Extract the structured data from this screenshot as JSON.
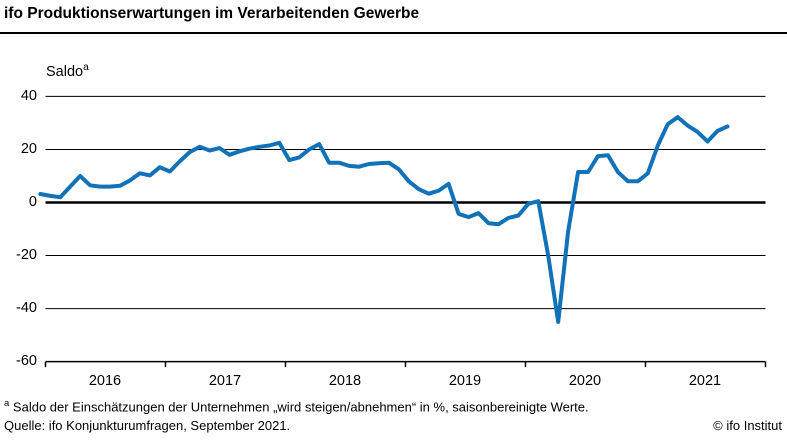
{
  "header": {
    "title": "ifo Produktionserwartungen im Verarbeitenden Gewerbe"
  },
  "chart_data": {
    "type": "line",
    "y_axis_label": "Saldo",
    "y_axis_label_superscript": "a",
    "y_tick_labels": [
      "40",
      "20",
      "0",
      "-20",
      "-40",
      "-60"
    ],
    "y_tick_values": [
      40,
      20,
      0,
      -20,
      -40,
      -60
    ],
    "ylim": [
      -60,
      45
    ],
    "x_tick_labels": [
      "2016",
      "2017",
      "2018",
      "2019",
      "2020",
      "2021"
    ],
    "grid": "horizontal-only",
    "zero_line_emphasized": true,
    "legend_position": "none",
    "line_color": "#1272b8",
    "series": [
      {
        "name": "Saldo",
        "frequency": "monthly",
        "x_start": "Dez 2015",
        "x_end": "Sep 2021",
        "values": [
          3.2,
          2.5,
          2.0,
          6.0,
          10.0,
          6.5,
          6.0,
          6.0,
          6.3,
          8.3,
          11.0,
          10.2,
          13.3,
          11.7,
          15.5,
          19.0,
          21.0,
          19.6,
          20.5,
          18.0,
          19.3,
          20.3,
          21.0,
          21.5,
          22.5,
          16.0,
          17.0,
          20.0,
          22.0,
          15.0,
          15.0,
          13.8,
          13.5,
          14.5,
          14.8,
          15.0,
          12.5,
          8.0,
          5.0,
          3.3,
          4.5,
          7.0,
          -4.3,
          -5.5,
          -4.0,
          -7.8,
          -8.2,
          -5.8,
          -4.9,
          -0.5,
          0.5,
          -20.0,
          -45.0,
          -11.0,
          11.5,
          11.5,
          17.5,
          17.8,
          11.5,
          8.0,
          8.0,
          11.0,
          21.5,
          29.5,
          32.2,
          29.0,
          26.6,
          23.0,
          27.0,
          28.7
        ]
      }
    ]
  },
  "footer": {
    "footnote_marker": "a",
    "footnote_text": "Saldo der Einschätzungen der Unternehmen „wird steigen/abnehmen“ in %, saisonbereinigte Werte.",
    "source_text": "Quelle: ifo Konjunkturumfragen, September 2021.",
    "copyright_text": "© ifo Institut"
  }
}
